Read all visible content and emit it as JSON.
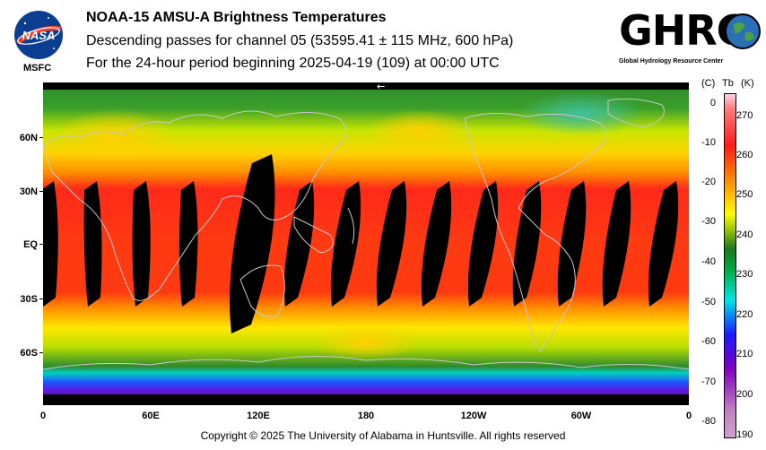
{
  "header": {
    "title": "NOAA-15 AMSU-A Brightness Temperatures",
    "subtitle_1": "Descending passes for channel 05 (53595.41 ± 115 MHz, 600 hPa)",
    "subtitle_2": "For the 24-hour period beginning 2025-04-19 (109) at 00:00 UTC"
  },
  "logos": {
    "nasa": "NASA",
    "msfc": "MSFC",
    "ghrc": "GHRC",
    "ghrc_tagline": "Global Hydrology Resource Center"
  },
  "map": {
    "lat_labels": [
      "60N",
      "30N",
      "EQ",
      "30S",
      "60S"
    ],
    "lon_labels": [
      "0",
      "60E",
      "120E",
      "180",
      "120W",
      "60W",
      "0"
    ],
    "direction_arrow": "←"
  },
  "colorbar": {
    "header_c": "(C)",
    "header_tb": "Tb",
    "header_k": "(K)",
    "celsius_ticks": [
      "0",
      "-10",
      "-20",
      "-30",
      "-40",
      "-50",
      "-60",
      "-70",
      "-80"
    ],
    "kelvin_ticks": [
      "270",
      "260",
      "250",
      "240",
      "230",
      "220",
      "210",
      "200",
      "190"
    ],
    "range_k": [
      188,
      275
    ],
    "colors": [
      "#ffd6e0",
      "#ff1a1a",
      "#ff8c00",
      "#ffff00",
      "#1a7a1a",
      "#00e5e5",
      "#1a1aff",
      "#8000c0",
      "#c080c0"
    ]
  },
  "footer": {
    "copyright": "Copyright © 2025 The University of Alabama in Huntsville.  All rights reserved"
  }
}
